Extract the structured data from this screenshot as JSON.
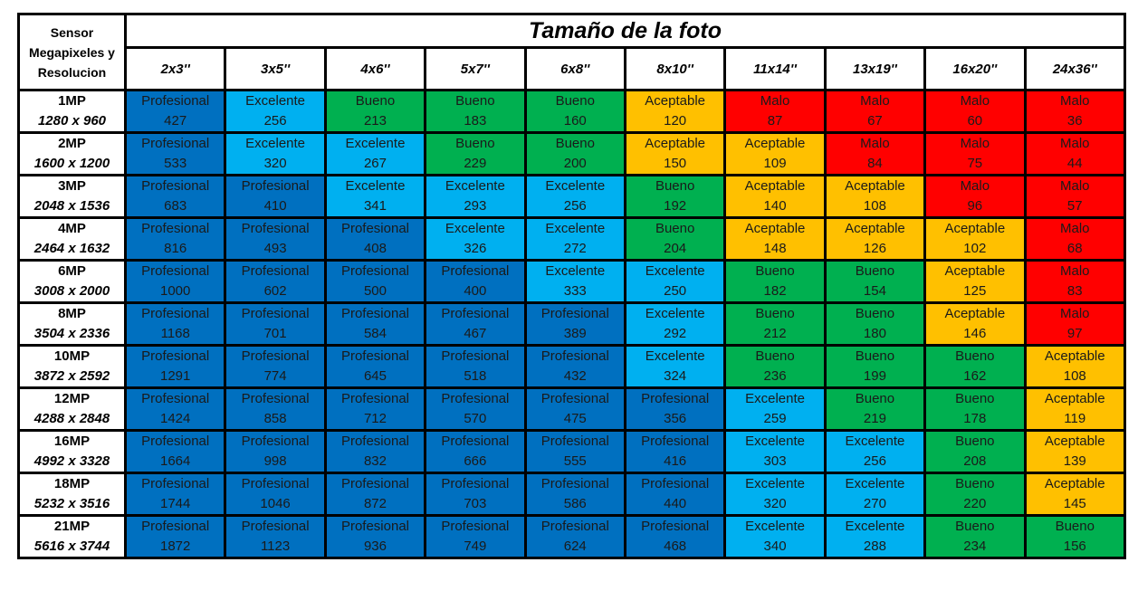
{
  "header": {
    "sensor_label": "Sensor Megapixeles y Resolucion",
    "title": "Tamaño de la foto",
    "sizes": [
      "2x3''",
      "3x5''",
      "4x6''",
      "5x7''",
      "6x8''",
      "8x10''",
      "11x14''",
      "13x19''",
      "16x20''",
      "24x36''"
    ]
  },
  "colors": {
    "Profesional": "#0070c0",
    "Excelente": "#00b0f0",
    "Bueno": "#00b050",
    "Aceptable": "#ffc000",
    "Malo": "#ff0000"
  },
  "rows": [
    {
      "mp": "1MP",
      "res": "1280 x 960",
      "ratings": [
        "Profesional",
        "Excelente",
        "Bueno",
        "Bueno",
        "Bueno",
        "Aceptable",
        "Malo",
        "Malo",
        "Malo",
        "Malo"
      ],
      "values": [
        "427",
        "256",
        "213",
        "183",
        "160",
        "120",
        "87",
        "67",
        "60",
        "36"
      ]
    },
    {
      "mp": "2MP",
      "res": "1600 x 1200",
      "ratings": [
        "Profesional",
        "Excelente",
        "Excelente",
        "Bueno",
        "Bueno",
        "Aceptable",
        "Aceptable",
        "Malo",
        "Malo",
        "Malo"
      ],
      "values": [
        "533",
        "320",
        "267",
        "229",
        "200",
        "150",
        "109",
        "84",
        "75",
        "44"
      ]
    },
    {
      "mp": "3MP",
      "res": "2048 x 1536",
      "ratings": [
        "Profesional",
        "Profesional",
        "Excelente",
        "Excelente",
        "Excelente",
        "Bueno",
        "Aceptable",
        "Aceptable",
        "Malo",
        "Malo"
      ],
      "values": [
        "683",
        "410",
        "341",
        "293",
        "256",
        "192",
        "140",
        "108",
        "96",
        "57"
      ]
    },
    {
      "mp": "4MP",
      "res": "2464 x 1632",
      "ratings": [
        "Profesional",
        "Profesional",
        "Profesional",
        "Excelente",
        "Excelente",
        "Bueno",
        "Aceptable",
        "Aceptable",
        "Aceptable",
        "Malo"
      ],
      "values": [
        "816",
        "493",
        "408",
        "326",
        "272",
        "204",
        "148",
        "126",
        "102",
        "68"
      ]
    },
    {
      "mp": "6MP",
      "res": "3008 x 2000",
      "ratings": [
        "Profesional",
        "Profesional",
        "Profesional",
        "Profesional",
        "Excelente",
        "Excelente",
        "Bueno",
        "Bueno",
        "Aceptable",
        "Malo"
      ],
      "values": [
        "1000",
        "602",
        "500",
        "400",
        "333",
        "250",
        "182",
        "154",
        "125",
        "83"
      ]
    },
    {
      "mp": "8MP",
      "res": "3504 x 2336",
      "ratings": [
        "Profesional",
        "Profesional",
        "Profesional",
        "Profesional",
        "Profesional",
        "Excelente",
        "Bueno",
        "Bueno",
        "Aceptable",
        "Malo"
      ],
      "values": [
        "1168",
        "701",
        "584",
        "467",
        "389",
        "292",
        "212",
        "180",
        "146",
        "97"
      ]
    },
    {
      "mp": "10MP",
      "res": "3872 x 2592",
      "ratings": [
        "Profesional",
        "Profesional",
        "Profesional",
        "Profesional",
        "Profesional",
        "Excelente",
        "Bueno",
        "Bueno",
        "Bueno",
        "Aceptable"
      ],
      "values": [
        "1291",
        "774",
        "645",
        "518",
        "432",
        "324",
        "236",
        "199",
        "162",
        "108"
      ]
    },
    {
      "mp": "12MP",
      "res": "4288 x 2848",
      "ratings": [
        "Profesional",
        "Profesional",
        "Profesional",
        "Profesional",
        "Profesional",
        "Profesional",
        "Excelente",
        "Bueno",
        "Bueno",
        "Aceptable"
      ],
      "values": [
        "1424",
        "858",
        "712",
        "570",
        "475",
        "356",
        "259",
        "219",
        "178",
        "119"
      ]
    },
    {
      "mp": "16MP",
      "res": "4992 x 3328",
      "ratings": [
        "Profesional",
        "Profesional",
        "Profesional",
        "Profesional",
        "Profesional",
        "Profesional",
        "Excelente",
        "Excelente",
        "Bueno",
        "Aceptable"
      ],
      "values": [
        "1664",
        "998",
        "832",
        "666",
        "555",
        "416",
        "303",
        "256",
        "208",
        "139"
      ]
    },
    {
      "mp": "18MP",
      "res": "5232 x 3516",
      "ratings": [
        "Profesional",
        "Profesional",
        "Profesional",
        "Profesional",
        "Profesional",
        "Profesional",
        "Excelente",
        "Excelente",
        "Bueno",
        "Aceptable"
      ],
      "values": [
        "1744",
        "1046",
        "872",
        "703",
        "586",
        "440",
        "320",
        "270",
        "220",
        "145"
      ]
    },
    {
      "mp": "21MP",
      "res": "5616 x 3744",
      "ratings": [
        "Profesional",
        "Profesional",
        "Profesional",
        "Profesional",
        "Profesional",
        "Profesional",
        "Excelente",
        "Excelente",
        "Bueno",
        "Bueno"
      ],
      "values": [
        "1872",
        "1123",
        "936",
        "749",
        "624",
        "468",
        "340",
        "288",
        "234",
        "156"
      ]
    }
  ]
}
